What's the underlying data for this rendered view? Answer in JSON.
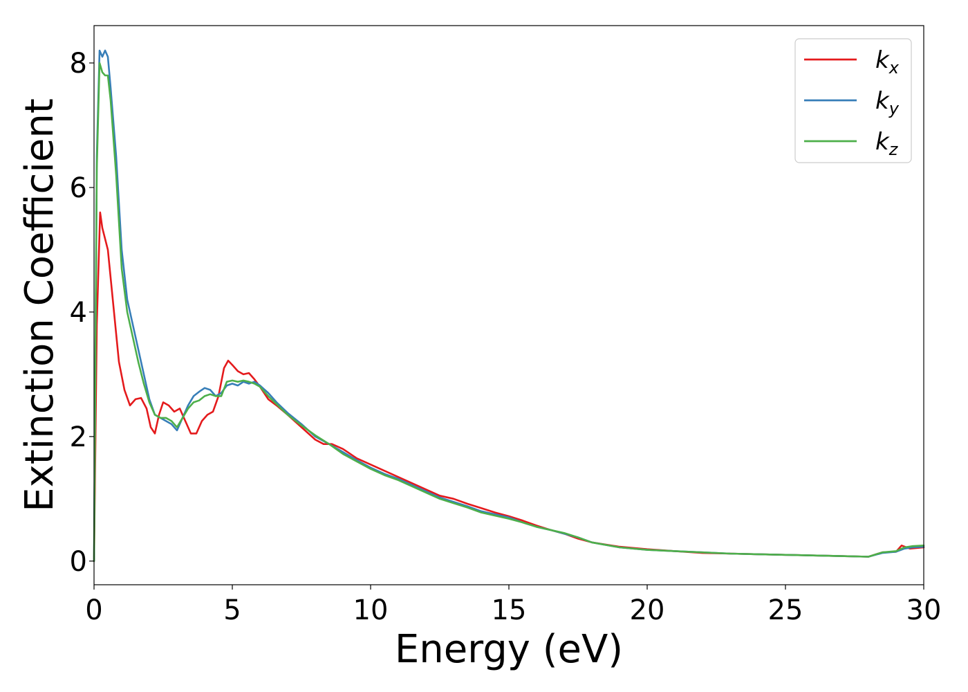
{
  "chart_data": {
    "type": "line",
    "title": "",
    "xlabel": "Energy (eV)",
    "ylabel": "Extinction Coefficient",
    "xlim": [
      0,
      30
    ],
    "ylim": [
      -0.38,
      8.6
    ],
    "xticks": [
      0,
      5,
      10,
      15,
      20,
      25,
      30
    ],
    "yticks": [
      0,
      2,
      4,
      6,
      8
    ],
    "grid": false,
    "legend_position": "top-right",
    "series": [
      {
        "name": "k_x",
        "label_base": "k",
        "label_sub": "x",
        "color": "#e41a1c",
        "x": [
          0,
          0.1,
          0.22,
          0.3,
          0.5,
          0.7,
          0.9,
          1.1,
          1.3,
          1.5,
          1.7,
          1.9,
          2.05,
          2.2,
          2.35,
          2.5,
          2.7,
          2.9,
          3.1,
          3.3,
          3.5,
          3.7,
          3.9,
          4.1,
          4.3,
          4.5,
          4.7,
          4.85,
          5.0,
          5.2,
          5.4,
          5.6,
          5.8,
          6.0,
          6.3,
          6.6,
          7.0,
          7.5,
          8.0,
          8.3,
          8.6,
          9.0,
          9.5,
          10,
          10.5,
          11,
          11.5,
          12,
          12.5,
          13,
          13.5,
          14,
          14.5,
          15,
          15.5,
          16,
          16.5,
          17,
          17.5,
          18,
          19,
          20,
          21,
          22,
          23,
          24,
          25,
          26,
          27,
          28,
          28.5,
          29,
          29.2,
          29.5,
          30
        ],
        "y": [
          0,
          3.8,
          5.6,
          5.35,
          5.0,
          4.1,
          3.2,
          2.75,
          2.5,
          2.6,
          2.62,
          2.45,
          2.15,
          2.05,
          2.35,
          2.55,
          2.5,
          2.4,
          2.45,
          2.25,
          2.05,
          2.05,
          2.25,
          2.35,
          2.4,
          2.65,
          3.1,
          3.22,
          3.15,
          3.05,
          3.0,
          3.02,
          2.92,
          2.8,
          2.6,
          2.5,
          2.35,
          2.15,
          1.95,
          1.88,
          1.88,
          1.8,
          1.65,
          1.55,
          1.45,
          1.35,
          1.25,
          1.15,
          1.05,
          1.0,
          0.92,
          0.85,
          0.78,
          0.72,
          0.65,
          0.57,
          0.5,
          0.44,
          0.36,
          0.3,
          0.23,
          0.19,
          0.16,
          0.13,
          0.12,
          0.11,
          0.1,
          0.09,
          0.08,
          0.07,
          0.14,
          0.15,
          0.25,
          0.2,
          0.22
        ]
      },
      {
        "name": "k_y",
        "label_base": "k",
        "label_sub": "y",
        "color": "#377eb8",
        "x": [
          0,
          0.1,
          0.2,
          0.3,
          0.4,
          0.5,
          0.6,
          0.8,
          1.0,
          1.2,
          1.4,
          1.6,
          1.8,
          2.0,
          2.2,
          2.4,
          2.6,
          2.8,
          3.0,
          3.2,
          3.4,
          3.6,
          3.8,
          4.0,
          4.2,
          4.4,
          4.6,
          4.8,
          5.0,
          5.2,
          5.4,
          5.6,
          5.8,
          6.0,
          6.3,
          6.6,
          7.0,
          7.5,
          8.0,
          8.5,
          9.0,
          9.5,
          10,
          10.5,
          11,
          11.5,
          12,
          12.5,
          13,
          13.5,
          14,
          14.5,
          15,
          15.5,
          16,
          16.5,
          17,
          17.5,
          18,
          19,
          20,
          21,
          22,
          23,
          24,
          25,
          26,
          27,
          28,
          28.5,
          29,
          29.3,
          29.6,
          30
        ],
        "y": [
          0,
          6.5,
          8.2,
          8.1,
          8.2,
          8.1,
          7.6,
          6.5,
          5.0,
          4.2,
          3.8,
          3.4,
          3.0,
          2.6,
          2.35,
          2.3,
          2.25,
          2.2,
          2.1,
          2.3,
          2.5,
          2.65,
          2.72,
          2.78,
          2.75,
          2.65,
          2.7,
          2.82,
          2.85,
          2.82,
          2.88,
          2.85,
          2.88,
          2.82,
          2.7,
          2.55,
          2.38,
          2.2,
          2.0,
          1.88,
          1.75,
          1.62,
          1.5,
          1.4,
          1.32,
          1.22,
          1.12,
          1.02,
          0.95,
          0.88,
          0.8,
          0.75,
          0.7,
          0.62,
          0.55,
          0.5,
          0.44,
          0.38,
          0.3,
          0.22,
          0.18,
          0.16,
          0.14,
          0.12,
          0.11,
          0.1,
          0.09,
          0.08,
          0.07,
          0.13,
          0.15,
          0.2,
          0.22,
          0.23
        ]
      },
      {
        "name": "k_z",
        "label_base": "k",
        "label_sub": "z",
        "color": "#4daf4a",
        "x": [
          0,
          0.1,
          0.2,
          0.3,
          0.4,
          0.5,
          0.6,
          0.8,
          1.0,
          1.2,
          1.4,
          1.6,
          1.8,
          2.0,
          2.2,
          2.4,
          2.6,
          2.8,
          3.0,
          3.2,
          3.4,
          3.6,
          3.8,
          4.0,
          4.2,
          4.4,
          4.6,
          4.8,
          5.0,
          5.2,
          5.4,
          5.6,
          5.8,
          6.0,
          6.3,
          6.6,
          7.0,
          7.5,
          8.0,
          8.5,
          9.0,
          9.5,
          10,
          10.5,
          11,
          11.5,
          12,
          12.5,
          13,
          13.5,
          14,
          14.5,
          15,
          15.5,
          16,
          16.5,
          17,
          17.5,
          18,
          19,
          20,
          21,
          22,
          23,
          24,
          25,
          26,
          27,
          28,
          28.5,
          29,
          29.3,
          29.6,
          30
        ],
        "y": [
          0,
          6.3,
          8.0,
          7.85,
          7.8,
          7.8,
          7.4,
          6.2,
          4.7,
          4.0,
          3.6,
          3.2,
          2.85,
          2.55,
          2.35,
          2.3,
          2.3,
          2.25,
          2.15,
          2.3,
          2.45,
          2.55,
          2.58,
          2.65,
          2.68,
          2.65,
          2.65,
          2.88,
          2.9,
          2.88,
          2.9,
          2.88,
          2.85,
          2.8,
          2.65,
          2.52,
          2.35,
          2.18,
          2.02,
          1.88,
          1.72,
          1.6,
          1.48,
          1.38,
          1.3,
          1.2,
          1.1,
          1.0,
          0.93,
          0.86,
          0.78,
          0.73,
          0.68,
          0.62,
          0.55,
          0.5,
          0.45,
          0.38,
          0.3,
          0.22,
          0.18,
          0.16,
          0.14,
          0.12,
          0.11,
          0.1,
          0.09,
          0.08,
          0.07,
          0.14,
          0.16,
          0.22,
          0.24,
          0.25
        ]
      }
    ]
  }
}
